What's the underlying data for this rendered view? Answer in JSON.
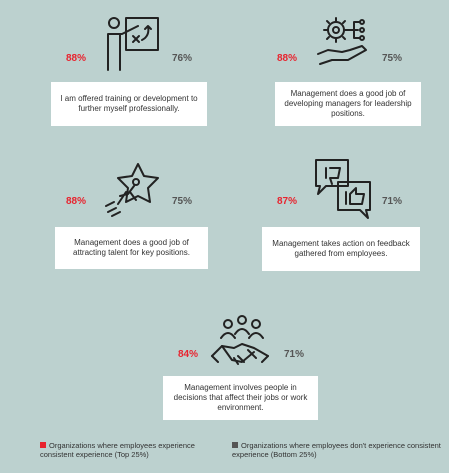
{
  "items": [
    {
      "top_pct": "88%",
      "bottom_pct": "76%",
      "label": "I am offered training or development to further myself professionally.",
      "icon": "training-board-icon"
    },
    {
      "top_pct": "88%",
      "bottom_pct": "75%",
      "label": "Management does a good job of developing managers for leadership positions.",
      "icon": "hand-gear-icon"
    },
    {
      "top_pct": "88%",
      "bottom_pct": "75%",
      "label": "Management does a good job of attracting talent for key positions.",
      "icon": "star-runner-icon"
    },
    {
      "top_pct": "87%",
      "bottom_pct": "71%",
      "label": "Management takes action on feedback gathered from employees.",
      "icon": "thumbs-feedback-icon"
    },
    {
      "top_pct": "84%",
      "bottom_pct": "71%",
      "label": "Management involves people in decisions that affect their jobs or work environment.",
      "icon": "team-handshake-icon"
    }
  ],
  "legend": {
    "top": "Organizations where employees experience consistent experience (Top 25%)",
    "bottom": "Organizations where employees don't experience consistent experience (Bottom 25%)"
  },
  "colors": {
    "background": "#bcd1cf",
    "top": "#e8232e",
    "bottom": "#555555",
    "card": "#ffffff"
  }
}
